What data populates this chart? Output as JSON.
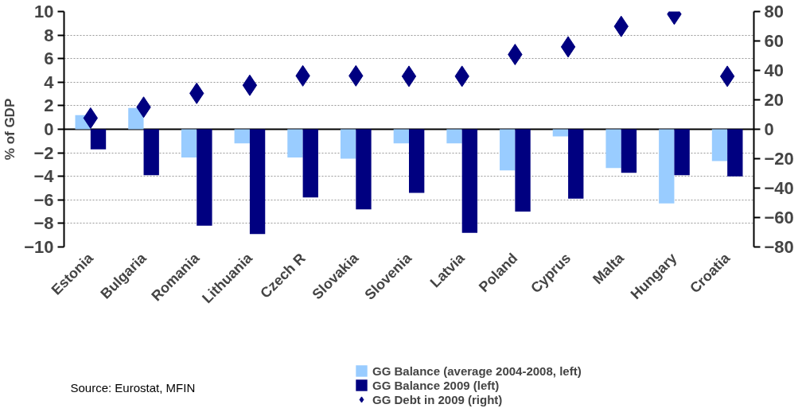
{
  "chart_data": {
    "type": "bar",
    "categories": [
      "Estonia",
      "Bulgaria",
      "Romania",
      "Lithuania",
      "Czech R",
      "Slovakia",
      "Slovenia",
      "Latvia",
      "Poland",
      "Cyprus",
      "Malta",
      "Hungary",
      "Croatia"
    ],
    "series": [
      {
        "name": "GG Balance (average 2004-2008, left)",
        "color": "#99ccff",
        "values": [
          1.2,
          1.8,
          -2.4,
          -1.2,
          -2.4,
          -2.5,
          -1.2,
          -1.2,
          -3.5,
          -0.6,
          -3.3,
          -6.3,
          -2.7
        ]
      },
      {
        "name": "GG Balance 2009 (left)",
        "color": "#000080",
        "values": [
          -1.7,
          -3.9,
          -8.2,
          -8.9,
          -5.8,
          -6.8,
          -5.4,
          -8.8,
          -7.0,
          -5.9,
          -3.7,
          -3.9,
          -4.0
        ]
      },
      {
        "name": "GG Debt in 2009 (right)",
        "color": "#000080",
        "type": "scatter",
        "axis": "y2",
        "marker": "diamond",
        "values": [
          7.6,
          15,
          24.4,
          29.9,
          36.3,
          36.3,
          36,
          36,
          50.8,
          56,
          69.9,
          78.2,
          36
        ]
      }
    ],
    "ylabel": "% of GDP",
    "ylim": [
      -10,
      10
    ],
    "yticks": [
      -10,
      -8,
      -6,
      -4,
      -2,
      0,
      2,
      4,
      6,
      8,
      10
    ],
    "y2lim": [
      -80,
      80
    ],
    "y2ticks": [
      -80,
      -60,
      -40,
      -20,
      0,
      20,
      40,
      60,
      80
    ],
    "grid": "y",
    "legend": "bottom",
    "annotations": [
      "Source: Eurostat, MFIN"
    ]
  }
}
